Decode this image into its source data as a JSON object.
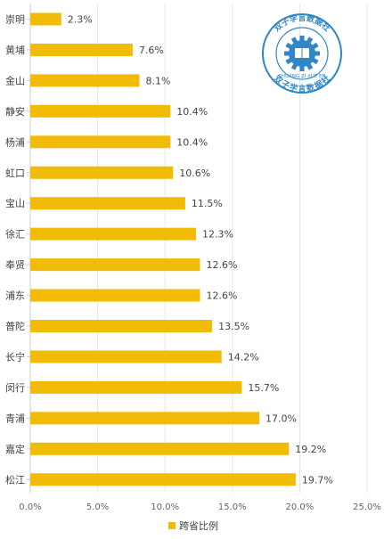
{
  "chart_data": {
    "type": "bar",
    "orientation": "horizontal",
    "categories": [
      "崇明",
      "黄埔",
      "金山",
      "静安",
      "杨浦",
      "虹口",
      "宝山",
      "徐汇",
      "奉贤",
      "浦东",
      "普陀",
      "长宁",
      "闵行",
      "青浦",
      "嘉定",
      "松江"
    ],
    "series": [
      {
        "name": "跨省比例",
        "values": [
          2.3,
          7.6,
          8.1,
          10.4,
          10.4,
          10.6,
          11.5,
          12.3,
          12.6,
          12.6,
          13.5,
          14.2,
          15.7,
          17.0,
          19.2,
          19.7
        ],
        "value_labels": [
          "2.3%",
          "7.6%",
          "8.1%",
          "10.4%",
          "10.4%",
          "10.6%",
          "11.5%",
          "12.3%",
          "12.6%",
          "12.6%",
          "13.5%",
          "14.2%",
          "15.7%",
          "17.0%",
          "19.2%",
          "19.7%"
        ],
        "color": "#f2bb05"
      }
    ],
    "x_ticks": [
      0,
      5,
      10,
      15,
      20,
      25
    ],
    "x_tick_labels": [
      "0.0%",
      "5.0%",
      "10.0%",
      "15.0%",
      "20.0%",
      "25.0%"
    ],
    "xlim": [
      0,
      25
    ],
    "grid": true,
    "legend_position": "bottom-center",
    "title": "",
    "xlabel": "",
    "ylabel": ""
  },
  "watermark": {
    "top_text": "双子学言数据社",
    "bottom_text": "双子学言数据社",
    "center_text": "SHUANG ZI XUE EN",
    "color": "#2f86c8"
  }
}
